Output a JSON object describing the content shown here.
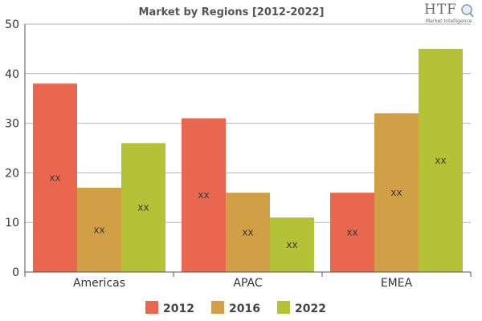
{
  "logo": {
    "mark": "HTF",
    "sub": "Market Intelligence"
  },
  "chart_data": {
    "type": "bar",
    "title": "Market by Regions [2012-2022]",
    "xlabel": "",
    "ylabel": "",
    "categories": [
      "Americas",
      "APAC",
      "EMEA"
    ],
    "series": [
      {
        "name": "2012",
        "color": "#e8674e",
        "values": [
          38,
          31,
          16
        ]
      },
      {
        "name": "2016",
        "color": "#d19f45",
        "values": [
          17,
          16,
          32
        ]
      },
      {
        "name": "2022",
        "color": "#b4c235",
        "values": [
          26,
          11,
          45
        ]
      }
    ],
    "data_label": "xx",
    "ylim": [
      0,
      50
    ],
    "yticks": [
      0,
      10,
      20,
      30,
      40,
      50
    ],
    "grid": true,
    "legend_position": "bottom"
  }
}
